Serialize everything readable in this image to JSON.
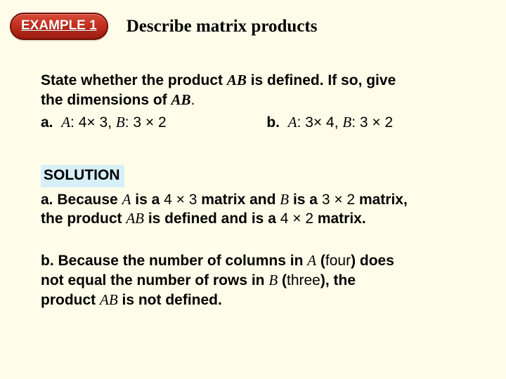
{
  "badge": {
    "text": "EXAMPLE 1",
    "bg_top": "#d84b3a",
    "bg_bot": "#9a1a10",
    "border": "#6e0e06",
    "color": "#ffffff"
  },
  "title": "Describe matrix products",
  "prompt": {
    "line1_a": "State whether the product ",
    "AB": "AB",
    "line1_b": " is defined. If so, give",
    "line2_a": "the dimensions of ",
    "line2_b": "."
  },
  "parts": {
    "a": {
      "lead": "a.",
      "A": "A",
      "a_dims": "4",
      "x": "×",
      "a_dims2": "3",
      "B": "B",
      "b_dims": "3",
      "b_dims2": "2"
    },
    "b": {
      "lead": "b.",
      "A": "A",
      "a_dims": "3",
      "x": "×",
      "a_dims2": "4",
      "B": "B",
      "b_dims": "3",
      "b_dims2": "2"
    }
  },
  "solution": {
    "label": "SOLUTION",
    "a": {
      "pre": "a. Because ",
      "A": "A",
      "t1": " is a ",
      "dimA": "4 × 3",
      "t2": " matrix and ",
      "B": "B",
      "t3": " is a  ",
      "dimB": "3 × 2",
      "t4": " matrix,",
      "line2a": "the product ",
      "AB": "AB",
      "line2b": " is defined and is a ",
      "dimAB": "4 × 2",
      "line2c": " matrix."
    },
    "b": {
      "pre": "b. Because the number of columns in ",
      "A": "A",
      "t1": " (",
      "four": "four",
      "t2": ") does",
      "line2": "not equal the number of rows in ",
      "B": "B",
      "t3": " (",
      "three": "three",
      "t4": "), the",
      "line3a": "product ",
      "AB": "AB",
      "line3b": " is not defined."
    }
  },
  "colors": {
    "page_bg": "#fffde9",
    "sol_bg": "#d7eff7"
  }
}
